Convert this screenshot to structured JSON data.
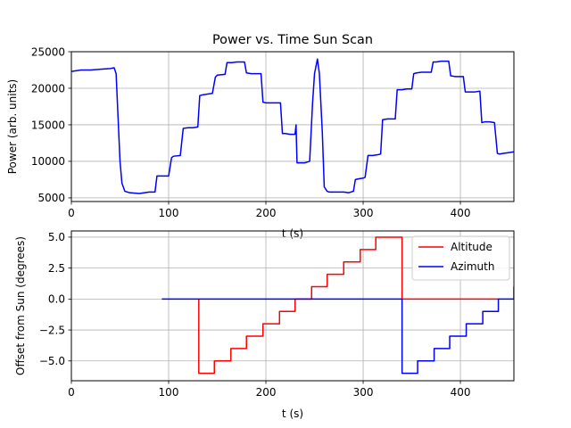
{
  "chart_data": [
    {
      "type": "line",
      "title": "Power vs. Time Sun Scan",
      "xlabel": "t (s)",
      "ylabel": "Power (arb. units)",
      "xlim": [
        0,
        455
      ],
      "ylim": [
        4500,
        25000
      ],
      "xticks": [
        0,
        100,
        200,
        300,
        400
      ],
      "yticks": [
        5000,
        10000,
        15000,
        20000,
        25000
      ],
      "grid": true,
      "series": [
        {
          "color": "#0000ff",
          "x": [
            0,
            10,
            20,
            30,
            40,
            44,
            46,
            48,
            50,
            52,
            55,
            60,
            70,
            80,
            86,
            88,
            95,
            100,
            103,
            105,
            112,
            115,
            120,
            125,
            130,
            132,
            135,
            140,
            145,
            148,
            150,
            158,
            160,
            165,
            170,
            178,
            180,
            185,
            195,
            197,
            200,
            205,
            210,
            215,
            217,
            220,
            225,
            230,
            231,
            232,
            234,
            236,
            240,
            245,
            248,
            250,
            253,
            255,
            258,
            260,
            263,
            265,
            270,
            275,
            280,
            285,
            290,
            292,
            295,
            300,
            302,
            305,
            310,
            315,
            318,
            320,
            325,
            330,
            333,
            335,
            340,
            345,
            350,
            352,
            355,
            360,
            365,
            370,
            372,
            375,
            380,
            385,
            388,
            390,
            395,
            400,
            403,
            405,
            410,
            415,
            420,
            422,
            425,
            430,
            435,
            438,
            440,
            445,
            450,
            455
          ],
          "y": [
            22300,
            22500,
            22500,
            22600,
            22700,
            22800,
            22000,
            16000,
            10000,
            7000,
            5900,
            5700,
            5600,
            5800,
            5800,
            8000,
            8000,
            8000,
            10500,
            10700,
            10800,
            14500,
            14600,
            14600,
            14700,
            19000,
            19100,
            19200,
            19300,
            21500,
            21800,
            21900,
            23500,
            23500,
            23600,
            23600,
            22100,
            22000,
            22000,
            18100,
            18000,
            18000,
            18000,
            18000,
            13800,
            13800,
            13700,
            13700,
            15000,
            9800,
            9800,
            9800,
            9800,
            10000,
            18000,
            22000,
            24000,
            22000,
            14000,
            6500,
            5900,
            5800,
            5800,
            5800,
            5800,
            5700,
            5900,
            7500,
            7600,
            7700,
            7800,
            10800,
            10800,
            10900,
            11000,
            15700,
            15800,
            15800,
            15800,
            19800,
            19800,
            19900,
            19900,
            22000,
            22100,
            22200,
            22200,
            22200,
            23600,
            23600,
            23700,
            23700,
            23700,
            21700,
            21600,
            21600,
            21600,
            19500,
            19500,
            19500,
            19600,
            15300,
            15400,
            15400,
            15300,
            11100,
            11000,
            11100,
            11200,
            11300
          ]
        }
      ]
    },
    {
      "type": "line",
      "title": "",
      "xlabel": "t (s)",
      "ylabel": "Offset from Sun (degrees)",
      "xlim": [
        0,
        455
      ],
      "ylim": [
        -6.6,
        5.5
      ],
      "xticks": [
        0,
        100,
        200,
        300,
        400
      ],
      "yticks": [
        -5.0,
        -2.5,
        0.0,
        2.5,
        5.0
      ],
      "ytick_labels": [
        "−5.0",
        "−2.5",
        "0.0",
        "2.5",
        "5.0"
      ],
      "grid": true,
      "legend": "top-right",
      "series": [
        {
          "name": "Altitude",
          "color": "#ff0000",
          "x": [
            131,
            131,
            147,
            147,
            164,
            164,
            180,
            180,
            197,
            197,
            214,
            214,
            230,
            230,
            247,
            247,
            263,
            263,
            280,
            280,
            297,
            297,
            313,
            313,
            340,
            340,
            440
          ],
          "y": [
            0,
            -6,
            -6,
            -5,
            -5,
            -4,
            -4,
            -3,
            -3,
            -2,
            -2,
            -1,
            -1,
            0,
            0,
            1,
            1,
            2,
            2,
            3,
            3,
            4,
            4,
            5,
            5,
            0,
            0
          ]
        },
        {
          "name": "Azimuth",
          "color": "#0000ff",
          "x": [
            93,
            340,
            340,
            356,
            356,
            373,
            373,
            389,
            389,
            406,
            406,
            423,
            423,
            439,
            439,
            455,
            455
          ],
          "y": [
            0,
            0,
            -6,
            -6,
            -5,
            -5,
            -4,
            -4,
            -3,
            -3,
            -2,
            -2,
            -1,
            -1,
            0,
            0,
            1
          ]
        }
      ]
    }
  ]
}
